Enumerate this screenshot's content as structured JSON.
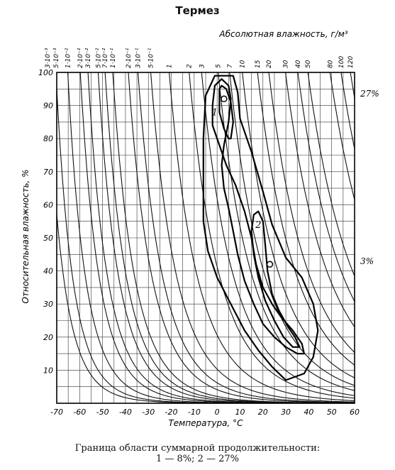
{
  "chart_data": {
    "type": "psychrometric-contour",
    "title": "Термез",
    "xlabel": "Температура, °C",
    "ylabel": "Относительная влажность, %",
    "top_axis_label": "Абсолютная влажность, г/м³",
    "xlim": [
      -70,
      60
    ],
    "ylim": [
      0,
      100
    ],
    "x_ticks": [
      "-70",
      "-60",
      "-50",
      "-40",
      "-30",
      "-20",
      "-10",
      "0",
      "10",
      "20",
      "30",
      "40",
      "50",
      "60"
    ],
    "y_ticks": [
      "10",
      "20",
      "30",
      "40",
      "50",
      "60",
      "70",
      "80",
      "90",
      "100"
    ],
    "grid": true,
    "abs_humidity_isolines": [
      {
        "label": "3·10⁻³",
        "value": 0.003
      },
      {
        "label": "5·10⁻³",
        "value": 0.005
      },
      {
        "label": "1·10⁻²",
        "value": 0.01
      },
      {
        "label": "2·10⁻²",
        "value": 0.02
      },
      {
        "label": "3·10⁻²",
        "value": 0.03
      },
      {
        "label": "5·10⁻²",
        "value": 0.05
      },
      {
        "label": "7·10⁻²",
        "value": 0.07
      },
      {
        "label": "1·10⁻¹",
        "value": 0.1
      },
      {
        "label": "2·10⁻¹",
        "value": 0.2
      },
      {
        "label": "3·10⁻¹",
        "value": 0.3
      },
      {
        "label": "5·10⁻¹",
        "value": 0.5
      },
      {
        "label": "1",
        "value": 1
      },
      {
        "label": "2",
        "value": 2
      },
      {
        "label": "3",
        "value": 3
      },
      {
        "label": "5",
        "value": 5
      },
      {
        "label": "7",
        "value": 7
      },
      {
        "label": "10",
        "value": 10
      },
      {
        "label": "15",
        "value": 15
      },
      {
        "label": "20",
        "value": 20
      },
      {
        "label": "30",
        "value": 30
      },
      {
        "label": "40",
        "value": 40
      },
      {
        "label": "50",
        "value": 50
      },
      {
        "label": "80",
        "value": 80
      },
      {
        "label": "100",
        "value": 100
      },
      {
        "label": "120",
        "value": 120
      }
    ],
    "contours": [
      {
        "name": "3%",
        "label": "3%",
        "points": [
          [
            -6,
            80
          ],
          [
            -6,
            55
          ],
          [
            -4,
            46
          ],
          [
            0,
            38
          ],
          [
            6,
            30
          ],
          [
            12,
            22
          ],
          [
            18,
            16
          ],
          [
            24,
            11
          ],
          [
            30,
            7
          ],
          [
            38,
            9
          ],
          [
            42,
            14
          ],
          [
            44,
            22
          ],
          [
            42,
            30
          ],
          [
            37,
            38
          ],
          [
            30,
            44
          ],
          [
            24,
            54
          ],
          [
            20,
            64
          ],
          [
            15,
            76
          ],
          [
            10,
            86
          ],
          [
            9,
            94
          ],
          [
            7,
            99
          ],
          [
            -1,
            99
          ],
          [
            -5,
            93
          ]
        ]
      },
      {
        "name": "2",
        "label": "2",
        "points": [
          [
            -1,
            96
          ],
          [
            -2,
            90
          ],
          [
            -2,
            84
          ],
          [
            1,
            78
          ],
          [
            4,
            72
          ],
          [
            8,
            66
          ],
          [
            12,
            58
          ],
          [
            15,
            50
          ],
          [
            17,
            42
          ],
          [
            20,
            35
          ],
          [
            24,
            30
          ],
          [
            28,
            26
          ],
          [
            33,
            22
          ],
          [
            37,
            18
          ],
          [
            38,
            15
          ],
          [
            35,
            15
          ],
          [
            30,
            17
          ],
          [
            25,
            20
          ],
          [
            20,
            24
          ],
          [
            16,
            30
          ],
          [
            12,
            37
          ],
          [
            9,
            45
          ],
          [
            7,
            52
          ],
          [
            5,
            59
          ],
          [
            3,
            65
          ],
          [
            2,
            72
          ],
          [
            3,
            78
          ],
          [
            5,
            85
          ],
          [
            6,
            92
          ],
          [
            5,
            96
          ],
          [
            2,
            98
          ]
        ]
      },
      {
        "name": "1",
        "label": "1",
        "points": [
          [
            1,
            95
          ],
          [
            1,
            88
          ],
          [
            3,
            83
          ],
          [
            5,
            80
          ],
          [
            6,
            80
          ],
          [
            7,
            85
          ],
          [
            6,
            91
          ],
          [
            4,
            95
          ],
          [
            2,
            96
          ]
        ]
      },
      {
        "name": "inner-2",
        "label": "",
        "points": [
          [
            16,
            57
          ],
          [
            18,
            58
          ],
          [
            20,
            55
          ],
          [
            21,
            48
          ],
          [
            22,
            40
          ],
          [
            24,
            33
          ],
          [
            27,
            28
          ],
          [
            31,
            23
          ],
          [
            34,
            20
          ],
          [
            36,
            17
          ],
          [
            33,
            17
          ],
          [
            29,
            20
          ],
          [
            25,
            25
          ],
          [
            21,
            31
          ],
          [
            18,
            38
          ],
          [
            16,
            45
          ],
          [
            15,
            52
          ]
        ]
      }
    ],
    "markers": [
      {
        "name": "point-a",
        "x": 3,
        "y": 92
      },
      {
        "name": "point-b",
        "x": 23,
        "y": 42
      }
    ],
    "right_labels": [
      "27%",
      "3%"
    ],
    "contour_labels": [
      "1",
      "2"
    ]
  },
  "caption": {
    "line1": "Граница области суммарной продолжительности:",
    "line2": "1 — 8%; 2 — 27%"
  }
}
